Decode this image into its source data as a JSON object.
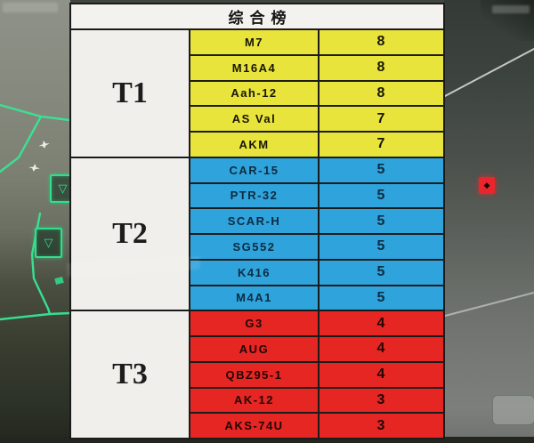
{
  "table": {
    "title": "综合榜",
    "tiers": [
      {
        "label": "T1",
        "row_color": "#e9e43b",
        "text_color": "#16150a",
        "rows": [
          {
            "name": "M7",
            "score": "8"
          },
          {
            "name": "M16A4",
            "score": "8"
          },
          {
            "name": "Aah-12",
            "score": "8"
          },
          {
            "name": "AS Val",
            "score": "7"
          },
          {
            "name": "AKM",
            "score": "7"
          }
        ]
      },
      {
        "label": "T2",
        "row_color": "#2fa3dc",
        "text_color": "#0d2b3f",
        "rows": [
          {
            "name": "CAR-15",
            "score": "5"
          },
          {
            "name": "PTR-32",
            "score": "5"
          },
          {
            "name": "SCAR-H",
            "score": "5"
          },
          {
            "name": "SG552",
            "score": "5"
          },
          {
            "name": "K416",
            "score": "5"
          },
          {
            "name": "M4A1",
            "score": "5"
          }
        ]
      },
      {
        "label": "T3",
        "row_color": "#e52622",
        "text_color": "#210606",
        "rows": [
          {
            "name": "G3",
            "score": "4"
          },
          {
            "name": "AUG",
            "score": "4"
          },
          {
            "name": "QBZ95-1",
            "score": "4"
          },
          {
            "name": "AK-12",
            "score": "3"
          },
          {
            "name": "AKS-74U",
            "score": "3"
          }
        ]
      }
    ]
  },
  "map": {
    "line_color": "#38e695",
    "marker_green_color": "#2ee08c",
    "marker_red_color": "#e8262c",
    "green_marker_glyph": "▽",
    "red_marker_glyph": "◆"
  }
}
